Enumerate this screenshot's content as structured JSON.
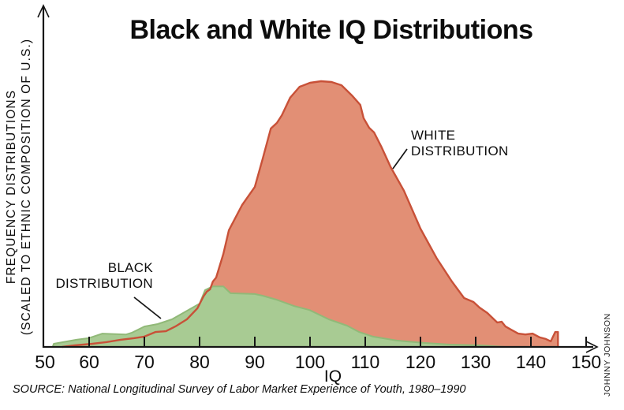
{
  "title": "Black and White IQ Distributions",
  "y_axis": {
    "label_line1": "FREQUENCY DISTRIBUTIONS",
    "label_line2": "(SCALED TO ETHNIC COMPOSITION OF U.S.)"
  },
  "x_axis": {
    "label": "IQ",
    "ticks": [
      {
        "label": "50",
        "iq": 50,
        "tick": false
      },
      {
        "label": "60",
        "iq": 60,
        "tick": true
      },
      {
        "label": "70",
        "iq": 70,
        "tick": true
      },
      {
        "label": "80",
        "iq": 80,
        "tick": true
      },
      {
        "label": "90",
        "iq": 90,
        "tick": true
      },
      {
        "label": "100",
        "iq": 100,
        "tick": true
      },
      {
        "label": "110",
        "iq": 110,
        "tick": true
      },
      {
        "label": "120",
        "iq": 120,
        "tick": true
      },
      {
        "label": "130",
        "iq": 130,
        "tick": true
      },
      {
        "label": "140",
        "iq": 140,
        "tick": true
      },
      {
        "label": "150",
        "iq": 150,
        "tick": true
      }
    ]
  },
  "annotations": {
    "white_line1": "WHITE",
    "white_line2": "DISTRIBUTION",
    "black_line1": "BLACK",
    "black_line2": "DISTRIBUTION"
  },
  "source": "SOURCE: National Longitudinal Survey of Labor Market Experience of Youth, 1980–1990",
  "credit": "JOHNNY JOHNSON",
  "colors": {
    "white_fill": "#E28F75",
    "white_stroke": "#C85138",
    "black_fill": "#A8CB93",
    "black_stroke": "#91B978",
    "axis": "#151515"
  },
  "chart_data": {
    "type": "area",
    "title": "Black and White IQ Distributions",
    "xlabel": "IQ",
    "ylabel": "FREQUENCY DISTRIBUTIONS (SCALED TO ETHNIC COMPOSITION OF U.S.)",
    "x_range": [
      50,
      152
    ],
    "y_unit": "relative frequency, scaled so white-distribution peak = 100",
    "legend_position": "inline-annotations",
    "grid": false,
    "series": [
      {
        "name": "BLACK DISTRIBUTION",
        "color": "#A8CB93",
        "points": [
          [
            53.4,
            0
          ],
          [
            53.6,
            1.2
          ],
          [
            55.3,
            1.8
          ],
          [
            57.7,
            2.7
          ],
          [
            59.9,
            3.3
          ],
          [
            62.4,
            5.0
          ],
          [
            66.7,
            4.7
          ],
          [
            67.7,
            5.3
          ],
          [
            70.0,
            7.7
          ],
          [
            72.4,
            8.6
          ],
          [
            75.0,
            10.4
          ],
          [
            77.7,
            13.6
          ],
          [
            80.0,
            16.3
          ],
          [
            81.0,
            21.4
          ],
          [
            82.4,
            22.8
          ],
          [
            84.3,
            22.8
          ],
          [
            85.6,
            20.2
          ],
          [
            90.0,
            19.9
          ],
          [
            91.4,
            19.3
          ],
          [
            93.9,
            17.8
          ],
          [
            97.1,
            15.4
          ],
          [
            99.9,
            13.9
          ],
          [
            103.4,
            10.4
          ],
          [
            106.7,
            8.0
          ],
          [
            108.9,
            5.6
          ],
          [
            111.4,
            3.9
          ],
          [
            115.7,
            2.4
          ],
          [
            120.6,
            1.5
          ],
          [
            125.3,
            0.9
          ],
          [
            131.0,
            0.6
          ],
          [
            135.3,
            0
          ]
        ]
      },
      {
        "name": "WHITE DISTRIBUTION",
        "color": "#E28F75",
        "points": [
          [
            55.1,
            0
          ],
          [
            57.4,
            0.6
          ],
          [
            60.6,
            1.2
          ],
          [
            63.1,
            1.8
          ],
          [
            65.7,
            2.7
          ],
          [
            68.1,
            3.3
          ],
          [
            70.0,
            3.9
          ],
          [
            72.0,
            5.6
          ],
          [
            73.9,
            5.9
          ],
          [
            75.6,
            7.7
          ],
          [
            77.7,
            10.4
          ],
          [
            79.6,
            14.5
          ],
          [
            80.7,
            19.0
          ],
          [
            81.3,
            20.8
          ],
          [
            81.9,
            21.7
          ],
          [
            82.4,
            24.6
          ],
          [
            83.0,
            26.1
          ],
          [
            84.3,
            35.0
          ],
          [
            85.3,
            43.9
          ],
          [
            87.7,
            53.4
          ],
          [
            90.0,
            60.2
          ],
          [
            91.4,
            70.6
          ],
          [
            92.9,
            82.2
          ],
          [
            94.0,
            84.3
          ],
          [
            94.9,
            87.2
          ],
          [
            96.4,
            93.8
          ],
          [
            98.1,
            97.9
          ],
          [
            100.0,
            99.4
          ],
          [
            102.0,
            100.0
          ],
          [
            103.9,
            99.7
          ],
          [
            105.7,
            98.5
          ],
          [
            107.7,
            94.4
          ],
          [
            109.1,
            91.1
          ],
          [
            109.7,
            86.1
          ],
          [
            110.7,
            82.5
          ],
          [
            111.6,
            80.7
          ],
          [
            112.9,
            75.4
          ],
          [
            114.6,
            67.7
          ],
          [
            117.0,
            58.8
          ],
          [
            120.0,
            44.5
          ],
          [
            122.9,
            33.5
          ],
          [
            125.7,
            24.6
          ],
          [
            127.9,
            18.4
          ],
          [
            129.6,
            16.9
          ],
          [
            130.7,
            14.8
          ],
          [
            132.1,
            12.8
          ],
          [
            133.9,
            9.2
          ],
          [
            134.7,
            9.5
          ],
          [
            135.4,
            7.7
          ],
          [
            136.4,
            6.5
          ],
          [
            137.7,
            5.0
          ],
          [
            139.0,
            4.7
          ],
          [
            140.3,
            5.0
          ],
          [
            141.6,
            3.6
          ],
          [
            142.7,
            3.0
          ],
          [
            143.6,
            2.1
          ],
          [
            144.4,
            5.6
          ],
          [
            144.9,
            5.6
          ],
          [
            144.9,
            0
          ]
        ]
      }
    ]
  }
}
